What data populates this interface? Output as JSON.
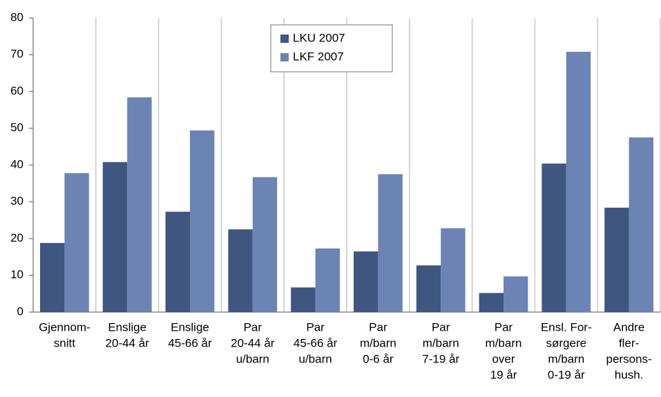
{
  "chart_data": {
    "type": "bar",
    "categories": [
      [
        "Gjennom-",
        "snitt"
      ],
      [
        "Enslige",
        "20-44 år"
      ],
      [
        "Enslige",
        "45-66 år"
      ],
      [
        "Par",
        "20-44 år",
        "u/barn"
      ],
      [
        "Par",
        "45-66 år",
        "u/barn"
      ],
      [
        "Par",
        "m/barn",
        "0-6 år"
      ],
      [
        "Par",
        "m/barn",
        "7-19 år"
      ],
      [
        "Par",
        "m/barn",
        "over",
        "19 år"
      ],
      [
        "Ensl. For-",
        "sørgere",
        "m/barn",
        "0-19 år"
      ],
      [
        "Andre",
        "fler-",
        "persons-",
        "hush."
      ]
    ],
    "series": [
      {
        "name": "LKU 2007",
        "color": "#3f5680",
        "values": [
          18.8,
          40.8,
          27.3,
          22.5,
          6.7,
          16.5,
          12.7,
          5.2,
          40.4,
          28.4
        ]
      },
      {
        "name": "LKF 2007",
        "color": "#6b84b3",
        "values": [
          37.8,
          58.4,
          49.4,
          36.7,
          17.3,
          37.5,
          22.8,
          9.7,
          70.8,
          47.5
        ]
      }
    ],
    "ylim": [
      0,
      80
    ],
    "yticks": [
      0,
      10,
      20,
      30,
      40,
      50,
      60,
      70,
      80
    ],
    "grid": "vertical",
    "legend": "top"
  }
}
